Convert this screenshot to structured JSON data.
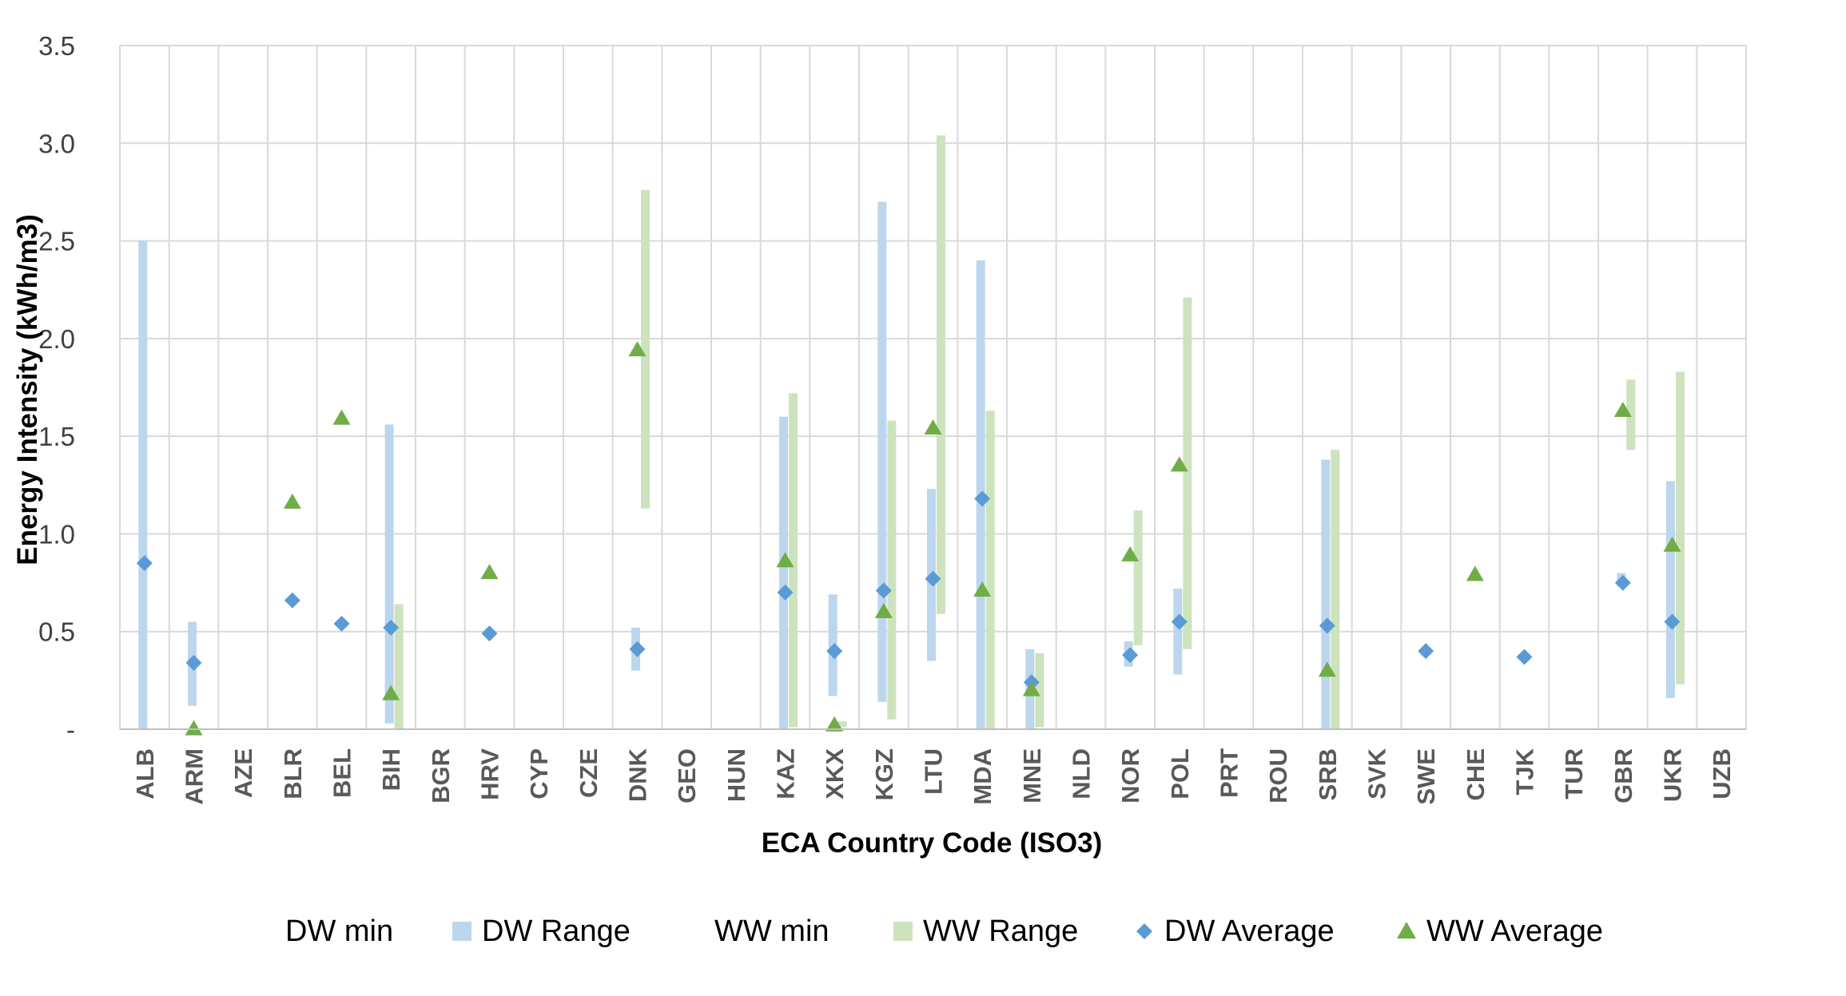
{
  "chart_data": {
    "type": "range-scatter",
    "title": "",
    "xlabel": "ECA Country Code (ISO3)",
    "ylabel": "Energy Intensity (kWh/m3)",
    "ylim": [
      0,
      3.5
    ],
    "yticks": [
      0,
      0.5,
      1.0,
      1.5,
      2.0,
      2.5,
      3.0,
      3.5
    ],
    "ytick_labels": [
      "-",
      "0.5",
      "1.0",
      "1.5",
      "2.0",
      "2.5",
      "3.0",
      "3.5"
    ],
    "grid": true,
    "legend_position": "bottom",
    "categories": [
      "ALB",
      "ARM",
      "AZE",
      "BLR",
      "BEL",
      "BIH",
      "BGR",
      "HRV",
      "CYP",
      "CZE",
      "DNK",
      "GEO",
      "HUN",
      "KAZ",
      "XKX",
      "KGZ",
      "LTU",
      "MDA",
      "MNE",
      "NLD",
      "NOR",
      "POL",
      "PRT",
      "ROU",
      "SRB",
      "SVK",
      "SWE",
      "CHE",
      "TJK",
      "TUR",
      "GBR",
      "UKR",
      "UZB"
    ],
    "legend": [
      {
        "label": "DW min",
        "symbol": "none",
        "color": ""
      },
      {
        "label": "DW Range",
        "symbol": "square",
        "color": "#bcd6ee"
      },
      {
        "label": "WW min",
        "symbol": "none",
        "color": ""
      },
      {
        "label": "WW Range",
        "symbol": "square",
        "color": "#cde3bd"
      },
      {
        "label": "DW Average",
        "symbol": "diamond",
        "color": "#5b9bd5"
      },
      {
        "label": "WW Average",
        "symbol": "triangle",
        "color": "#70ad47"
      }
    ],
    "series": [
      {
        "name": "DW Range",
        "kind": "range",
        "color": "#bcd6ee",
        "data": [
          {
            "category": "ALB",
            "min": 0.0,
            "max": 2.5
          },
          {
            "category": "ARM",
            "min": 0.12,
            "max": 0.55
          },
          {
            "category": "BIH",
            "min": 0.03,
            "max": 1.56
          },
          {
            "category": "DNK",
            "min": 0.3,
            "max": 0.52
          },
          {
            "category": "KAZ",
            "min": 0.0,
            "max": 1.6
          },
          {
            "category": "XKX",
            "min": 0.17,
            "max": 0.69
          },
          {
            "category": "KGZ",
            "min": 0.14,
            "max": 2.7
          },
          {
            "category": "LTU",
            "min": 0.35,
            "max": 1.23
          },
          {
            "category": "MDA",
            "min": 0.0,
            "max": 2.4
          },
          {
            "category": "MNE",
            "min": 0.0,
            "max": 0.41
          },
          {
            "category": "NOR",
            "min": 0.32,
            "max": 0.45
          },
          {
            "category": "POL",
            "min": 0.28,
            "max": 0.72
          },
          {
            "category": "SRB",
            "min": 0.0,
            "max": 1.38
          },
          {
            "category": "GBR",
            "min": 0.73,
            "max": 0.8
          },
          {
            "category": "UKR",
            "min": 0.16,
            "max": 1.27
          }
        ]
      },
      {
        "name": "WW Range",
        "kind": "range",
        "color": "#cde3bd",
        "data": [
          {
            "category": "BIH",
            "min": 0.0,
            "max": 0.64
          },
          {
            "category": "DNK",
            "min": 1.13,
            "max": 2.76
          },
          {
            "category": "KAZ",
            "min": 0.01,
            "max": 1.72
          },
          {
            "category": "XKX",
            "min": 0.01,
            "max": 0.04
          },
          {
            "category": "KGZ",
            "min": 0.05,
            "max": 1.58
          },
          {
            "category": "LTU",
            "min": 0.59,
            "max": 3.04
          },
          {
            "category": "MDA",
            "min": 0.0,
            "max": 1.63
          },
          {
            "category": "MNE",
            "min": 0.01,
            "max": 0.39
          },
          {
            "category": "NOR",
            "min": 0.43,
            "max": 1.12
          },
          {
            "category": "POL",
            "min": 0.41,
            "max": 2.21
          },
          {
            "category": "SRB",
            "min": 0.0,
            "max": 1.43
          },
          {
            "category": "GBR",
            "min": 1.43,
            "max": 1.79
          },
          {
            "category": "UKR",
            "min": 0.23,
            "max": 1.83
          }
        ]
      },
      {
        "name": "DW Average",
        "kind": "point",
        "marker": "diamond",
        "color": "#5b9bd5",
        "data": [
          {
            "category": "ALB",
            "value": 0.85
          },
          {
            "category": "ARM",
            "value": 0.34
          },
          {
            "category": "BLR",
            "value": 0.66
          },
          {
            "category": "BEL",
            "value": 0.54
          },
          {
            "category": "BIH",
            "value": 0.52
          },
          {
            "category": "HRV",
            "value": 0.49
          },
          {
            "category": "DNK",
            "value": 0.41
          },
          {
            "category": "KAZ",
            "value": 0.7
          },
          {
            "category": "XKX",
            "value": 0.4
          },
          {
            "category": "KGZ",
            "value": 0.71
          },
          {
            "category": "LTU",
            "value": 0.77
          },
          {
            "category": "MDA",
            "value": 1.18
          },
          {
            "category": "MNE",
            "value": 0.24
          },
          {
            "category": "NOR",
            "value": 0.38
          },
          {
            "category": "POL",
            "value": 0.55
          },
          {
            "category": "SRB",
            "value": 0.53
          },
          {
            "category": "SWE",
            "value": 0.4
          },
          {
            "category": "TJK",
            "value": 0.37
          },
          {
            "category": "GBR",
            "value": 0.75
          },
          {
            "category": "UKR",
            "value": 0.55
          }
        ]
      },
      {
        "name": "WW Average",
        "kind": "point",
        "marker": "triangle",
        "color": "#70ad47",
        "data": [
          {
            "category": "ARM",
            "value": 0.0
          },
          {
            "category": "BLR",
            "value": 1.16
          },
          {
            "category": "BEL",
            "value": 1.59
          },
          {
            "category": "BIH",
            "value": 0.18
          },
          {
            "category": "HRV",
            "value": 0.8
          },
          {
            "category": "DNK",
            "value": 1.94
          },
          {
            "category": "KAZ",
            "value": 0.86
          },
          {
            "category": "XKX",
            "value": 0.02
          },
          {
            "category": "KGZ",
            "value": 0.6
          },
          {
            "category": "LTU",
            "value": 1.54
          },
          {
            "category": "MDA",
            "value": 0.71
          },
          {
            "category": "MNE",
            "value": 0.2
          },
          {
            "category": "NOR",
            "value": 0.89
          },
          {
            "category": "POL",
            "value": 1.35
          },
          {
            "category": "SRB",
            "value": 0.3
          },
          {
            "category": "CHE",
            "value": 0.79
          },
          {
            "category": "GBR",
            "value": 1.63
          },
          {
            "category": "UKR",
            "value": 0.94
          }
        ]
      }
    ]
  }
}
